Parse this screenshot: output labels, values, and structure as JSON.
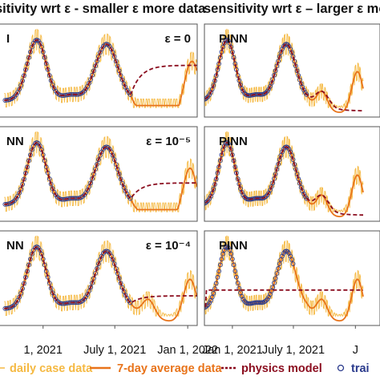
{
  "chart_data": {
    "type": "line",
    "column_titles": [
      "sitivity wrt ε - smaller ε more data",
      "sensitivity wrt ε – larger ε more data"
    ],
    "x_tick_labels": {
      "left": [
        "1, 2021",
        "July 1, 2021",
        "Jan 1, 2022"
      ],
      "right": [
        "Jan 1, 2021",
        "July 1, 2021",
        "J"
      ]
    },
    "x_tick_dates": {
      "left": [
        "2021-01-01",
        "2021-07-01",
        "2022-01-01"
      ],
      "right": [
        "2021-01-01",
        "2021-07-01",
        "2022-01-01"
      ]
    },
    "x_range": {
      "left": [
        "2020-08-25",
        "2022-01-25"
      ],
      "right": [
        "2020-10-10",
        "2022-03-15"
      ]
    },
    "grid": false,
    "panels": [
      {
        "name": "left-top",
        "label": "I",
        "epsilon_label": "ε = 0"
      },
      {
        "name": "right-top",
        "label": "PINN",
        "epsilon_label": ""
      },
      {
        "name": "left-mid",
        "label": "NN",
        "epsilon_label": "ε = 10⁻⁵"
      },
      {
        "name": "right-mid",
        "label": "PINN",
        "epsilon_label": ""
      },
      {
        "name": "left-bot",
        "label": "NN",
        "epsilon_label": "ε = 10⁻⁴"
      },
      {
        "name": "right-bot",
        "label": "PINN",
        "epsilon_label": ""
      }
    ],
    "legend": [
      {
        "label": "daily case data",
        "color": "#f5b942",
        "style": "thin-line"
      },
      {
        "label": "7-day average data",
        "color": "#e8731a",
        "style": "line"
      },
      {
        "label": "physics model",
        "color": "#8b0d1f",
        "style": "dotted"
      },
      {
        "label": "trai",
        "color": "#2a3a8c",
        "style": "circle"
      }
    ],
    "colors": {
      "daily": "#f5b942",
      "average": "#e8731a",
      "physics": "#8b0d1f",
      "training": "#2a3a8c"
    }
  }
}
